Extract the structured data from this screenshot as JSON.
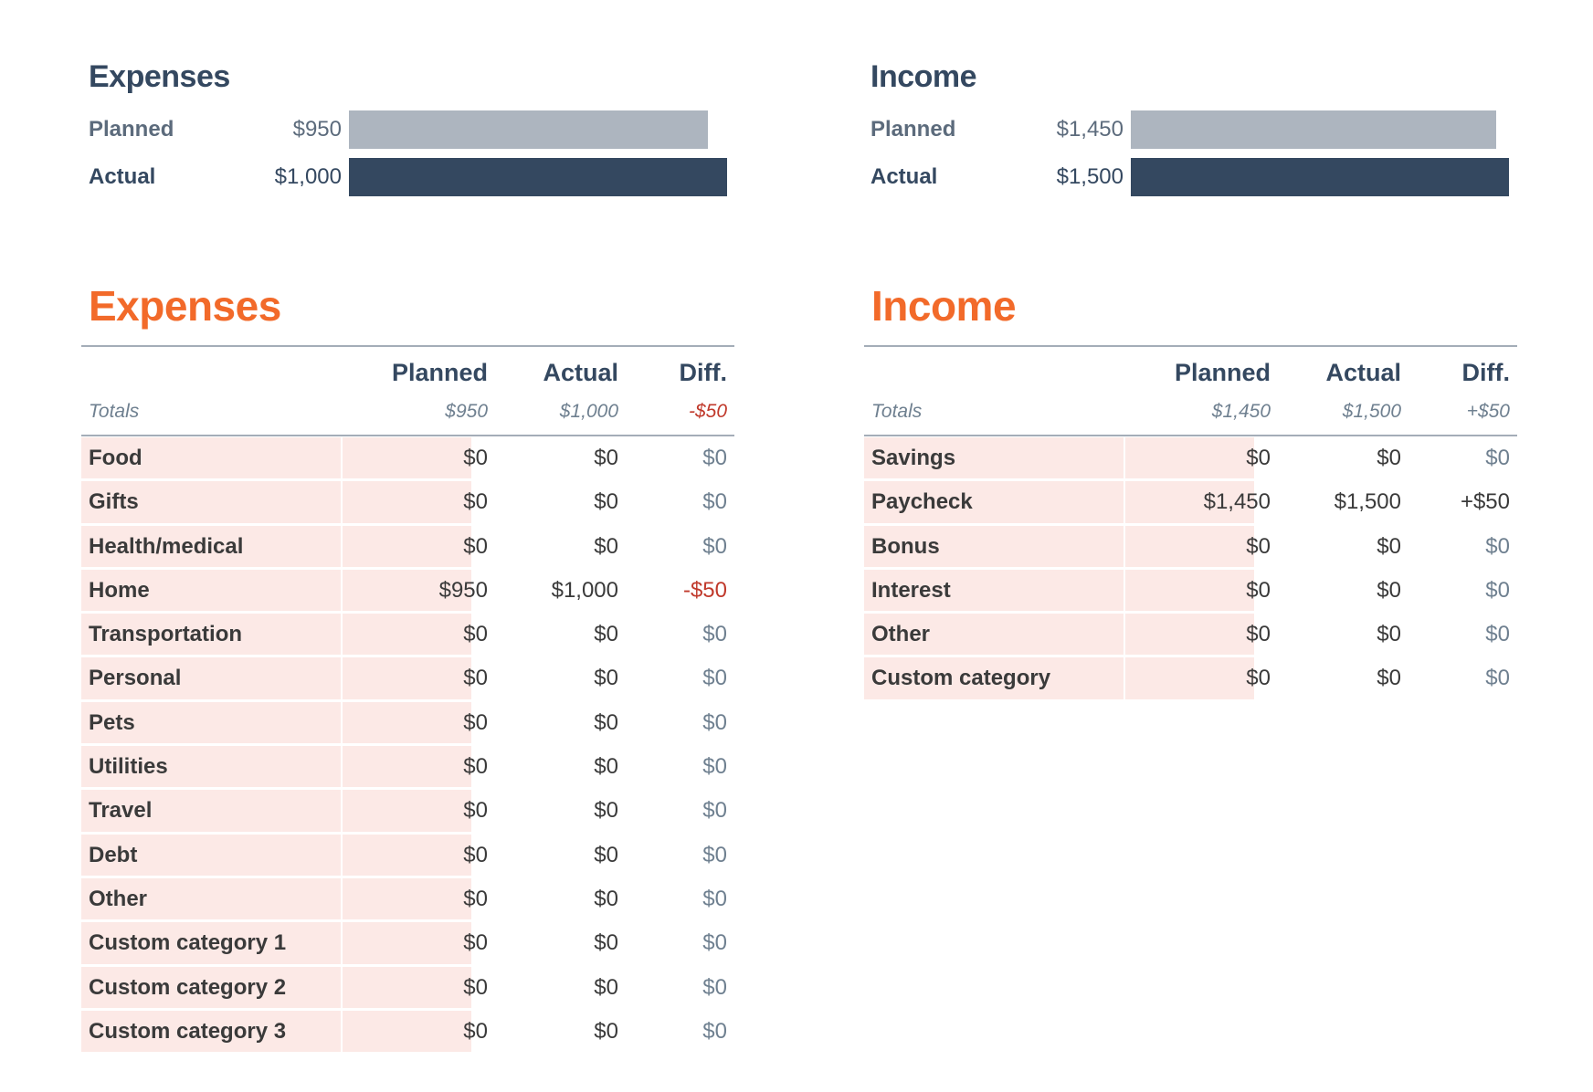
{
  "colors": {
    "accent": "#f26a2a",
    "navy": "#344860",
    "planned_bar": "#adb5bf",
    "cell_fill": "#fce9e6",
    "negative": "#c0392b"
  },
  "summary": {
    "expenses": {
      "title": "Expenses",
      "planned_label": "Planned",
      "planned_value": "$950",
      "planned_amount": 950,
      "actual_label": "Actual",
      "actual_value": "$1,000",
      "actual_amount": 1000
    },
    "income": {
      "title": "Income",
      "planned_label": "Planned",
      "planned_value": "$1,450",
      "planned_amount": 1450,
      "actual_label": "Actual",
      "actual_value": "$1,500",
      "actual_amount": 1500
    }
  },
  "expenses": {
    "title": "Expenses",
    "columns": [
      "Planned",
      "Actual",
      "Diff."
    ],
    "totals": {
      "label": "Totals",
      "planned": "$950",
      "actual": "$1,000",
      "diff": "-$50"
    },
    "rows": [
      {
        "name": "Food",
        "planned": "$0",
        "actual": "$0",
        "diff": "$0"
      },
      {
        "name": "Gifts",
        "planned": "$0",
        "actual": "$0",
        "diff": "$0"
      },
      {
        "name": "Health/medical",
        "planned": "$0",
        "actual": "$0",
        "diff": "$0"
      },
      {
        "name": "Home",
        "planned": "$950",
        "actual": "$1,000",
        "diff": "-$50"
      },
      {
        "name": "Transportation",
        "planned": "$0",
        "actual": "$0",
        "diff": "$0"
      },
      {
        "name": "Personal",
        "planned": "$0",
        "actual": "$0",
        "diff": "$0"
      },
      {
        "name": "Pets",
        "planned": "$0",
        "actual": "$0",
        "diff": "$0"
      },
      {
        "name": "Utilities",
        "planned": "$0",
        "actual": "$0",
        "diff": "$0"
      },
      {
        "name": "Travel",
        "planned": "$0",
        "actual": "$0",
        "diff": "$0"
      },
      {
        "name": "Debt",
        "planned": "$0",
        "actual": "$0",
        "diff": "$0"
      },
      {
        "name": "Other",
        "planned": "$0",
        "actual": "$0",
        "diff": "$0"
      },
      {
        "name": "Custom category 1",
        "planned": "$0",
        "actual": "$0",
        "diff": "$0"
      },
      {
        "name": "Custom category 2",
        "planned": "$0",
        "actual": "$0",
        "diff": "$0"
      },
      {
        "name": "Custom category 3",
        "planned": "$0",
        "actual": "$0",
        "diff": "$0"
      }
    ]
  },
  "income": {
    "title": "Income",
    "columns": [
      "Planned",
      "Actual",
      "Diff."
    ],
    "totals": {
      "label": "Totals",
      "planned": "$1,450",
      "actual": "$1,500",
      "diff": "+$50"
    },
    "rows": [
      {
        "name": "Savings",
        "planned": "$0",
        "actual": "$0",
        "diff": "$0"
      },
      {
        "name": "Paycheck",
        "planned": "$1,450",
        "actual": "$1,500",
        "diff": "+$50"
      },
      {
        "name": "Bonus",
        "planned": "$0",
        "actual": "$0",
        "diff": "$0"
      },
      {
        "name": "Interest",
        "planned": "$0",
        "actual": "$0",
        "diff": "$0"
      },
      {
        "name": "Other",
        "planned": "$0",
        "actual": "$0",
        "diff": "$0"
      },
      {
        "name": "Custom category",
        "planned": "$0",
        "actual": "$0",
        "diff": "$0"
      }
    ]
  }
}
